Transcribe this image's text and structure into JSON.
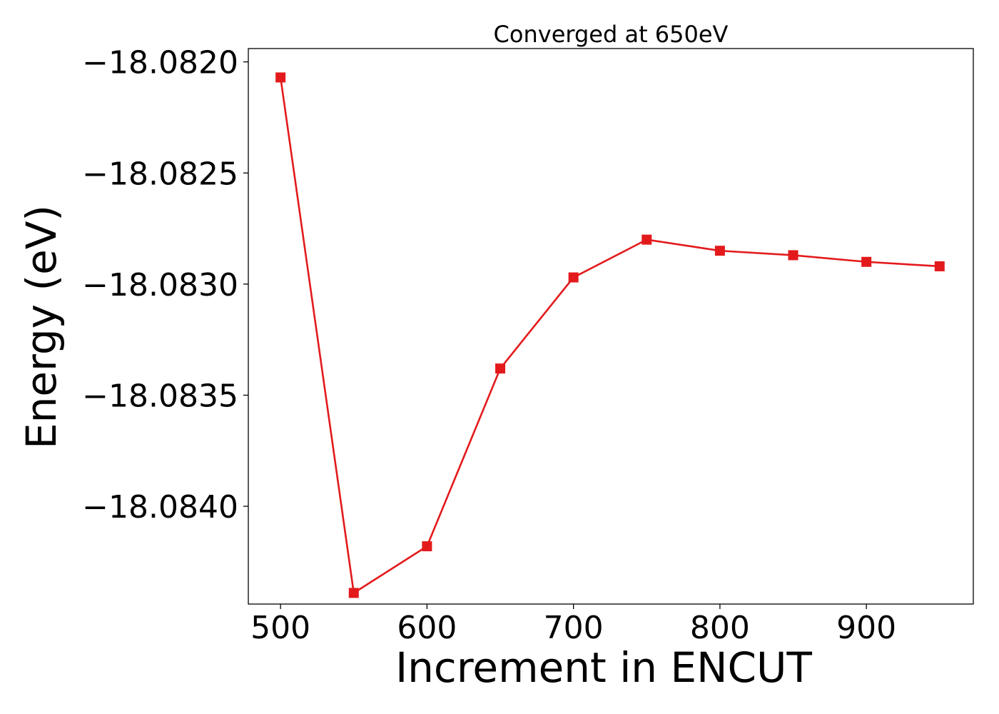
{
  "chart_data": {
    "type": "line",
    "title": "Converged at 650eV",
    "xlabel": "Increment in ENCUT",
    "ylabel": "Energy (eV)",
    "x": [
      500,
      550,
      600,
      650,
      700,
      750,
      800,
      850,
      900,
      950
    ],
    "series": [
      {
        "values": [
          -18.08207,
          -18.08439,
          -18.08418,
          -18.08338,
          -18.08297,
          -18.0828,
          -18.08285,
          -18.08287,
          -18.0829,
          -18.08292
        ]
      }
    ],
    "xlim": [
      478,
      973
    ],
    "ylim": [
      -18.08444,
      -18.08194
    ],
    "xticks": [
      500,
      600,
      700,
      800,
      900
    ],
    "xtick_labels": [
      "500",
      "600",
      "700",
      "800",
      "900"
    ],
    "yticks": [
      -18.082,
      -18.0825,
      -18.083,
      -18.0835,
      -18.084
    ],
    "ytick_labels": [
      "−18.0820",
      "−18.0825",
      "−18.0830",
      "−18.0835",
      "−18.0840"
    ],
    "line_color": "#e31a1c",
    "marker": "square",
    "grid": false,
    "legend": "none"
  }
}
